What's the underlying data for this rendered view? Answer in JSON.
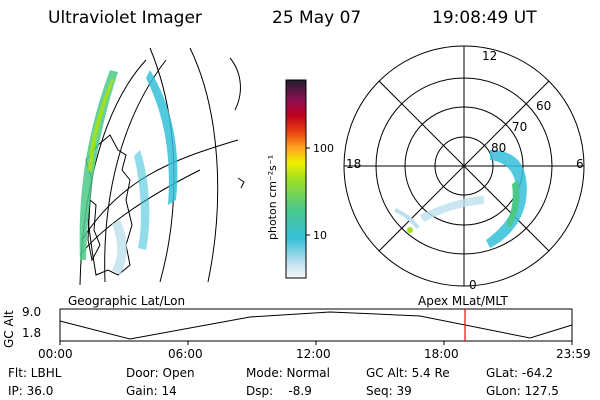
{
  "header": {
    "instrument": "Ultraviolet Imager",
    "date": "25 May 07",
    "time": "19:08:49 UT"
  },
  "colorbar": {
    "label": "photon cm⁻²s⁻¹",
    "ticks": [
      "100",
      "10"
    ]
  },
  "polar": {
    "mlt_labels": [
      "12",
      "18",
      "6",
      "0"
    ],
    "lat_labels": [
      "60",
      "70",
      "80"
    ]
  },
  "panels": {
    "left_label": "Geographic Lat/Lon",
    "right_label": "Apex MLat/MLT"
  },
  "altitude_strip": {
    "axis_label": "GC Alt",
    "y_ticks": [
      "9.0",
      "1.8"
    ],
    "time_ticks": [
      "00:00",
      "06:00",
      "12:00",
      "18:00",
      "23:59"
    ],
    "marker_time": "19:08:49",
    "marker_color": "#ff0000"
  },
  "info": {
    "flt": "Flt: LBHL",
    "ip": "IP: 36.0",
    "door": "Door: Open",
    "gain": "Gain: 14",
    "mode": "Mode: Normal",
    "dsp": "Dsp:    -8.9",
    "gcalt": "GC Alt: 5.4 Re",
    "seq": "Seq: 39",
    "glat": "GLat: -64.2",
    "glon": "GLon: 127.5"
  }
}
